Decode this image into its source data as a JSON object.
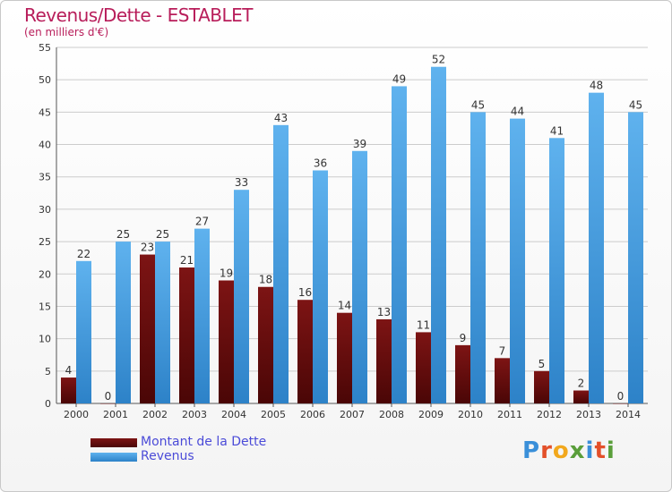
{
  "header": {
    "title": "Revenus/Dette - ESTABLET",
    "subtitle": "(en milliers d'€)"
  },
  "legend": {
    "debt_label": "Montant de la Dette",
    "revenue_label": "Revenus"
  },
  "logo": {
    "text": "Proxiti",
    "colors": [
      "#3a8fd9",
      "#e3502a",
      "#f2a81d",
      "#5a9e3a",
      "#3a8fd9",
      "#e3502a",
      "#5a9e3a"
    ]
  },
  "colors": {
    "debt_top": "#7d1414",
    "debt_bottom": "#4a0606",
    "revenue_top": "#5fb2ee",
    "revenue_bottom": "#2d82c8",
    "axis_text": "#333333",
    "grid": "#cccccc"
  },
  "chart_data": {
    "type": "bar",
    "title": "Revenus/Dette - ESTABLET",
    "ylabel": "(en milliers d'€)",
    "xlabel": "",
    "categories": [
      "2000",
      "2001",
      "2002",
      "2003",
      "2004",
      "2005",
      "2006",
      "2007",
      "2008",
      "2009",
      "2010",
      "2011",
      "2012",
      "2013",
      "2014"
    ],
    "series": [
      {
        "name": "Montant de la Dette",
        "values": [
          4,
          0,
          23,
          21,
          19,
          18,
          16,
          14,
          13,
          11,
          9,
          7,
          5,
          2,
          0
        ]
      },
      {
        "name": "Revenus",
        "values": [
          22,
          25,
          25,
          27,
          33,
          43,
          36,
          39,
          49,
          52,
          45,
          44,
          41,
          48,
          45
        ]
      }
    ],
    "ylim": [
      0,
      55
    ],
    "yticks": [
      0,
      5,
      10,
      15,
      20,
      25,
      30,
      35,
      40,
      45,
      50,
      55
    ],
    "grid": true,
    "legend_position": "bottom-left"
  }
}
